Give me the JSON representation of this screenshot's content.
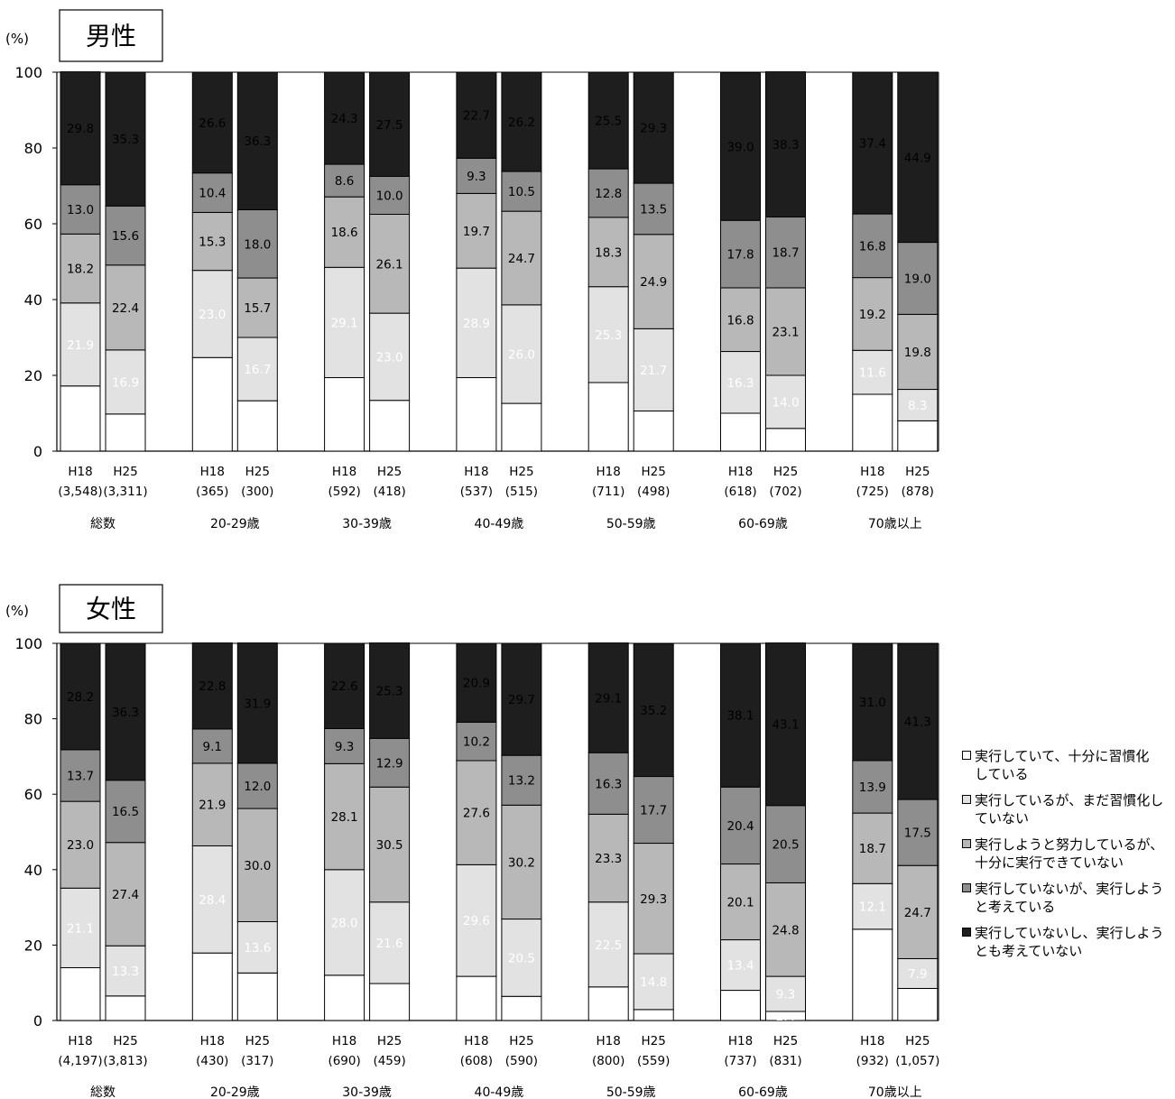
{
  "legend": [
    {
      "label": "実行していて、十分に習慣化している",
      "line1": "実行していて、十分に習慣化",
      "line2": "している",
      "color": "#ffffff"
    },
    {
      "label": "実行しているが、まだ習慣化していない",
      "line1": "実行しているが、まだ習慣化し",
      "line2": "ていない",
      "color": "#e2e2e2"
    },
    {
      "label": "実行しようと努力しているが、十分に実行できていない",
      "line1": "実行しようと努力しているが、",
      "line2": "十分に実行できていない",
      "color": "#b8b8b8"
    },
    {
      "label": "実行していないが、実行しようと考えている",
      "line1": "実行していないが、実行しよう",
      "line2": "と考えている",
      "color": "#8e8e8e"
    },
    {
      "label": "実行していないし、実行しようとも考えていない",
      "line1": "実行していないし、実行しよう",
      "line2": "とも考えていない",
      "color": "#1e1e1e"
    }
  ],
  "chart_data": [
    {
      "type": "bar",
      "stacked": true,
      "title": "男性",
      "ylabel": "(%)",
      "ylim": [
        0,
        100
      ],
      "yticks": [
        0,
        20,
        40,
        60,
        80,
        100
      ],
      "groups": [
        "総数",
        "20-29歳",
        "30-39歳",
        "40-49歳",
        "50-59歳",
        "60-69歳",
        "70歳以上"
      ],
      "bars": [
        {
          "group": 0,
          "year": "H18",
          "n": "(3,548)",
          "values": [
            17.2,
            21.9,
            18.2,
            13.0,
            29.8
          ]
        },
        {
          "group": 0,
          "year": "H25",
          "n": "(3,311)",
          "values": [
            9.8,
            16.9,
            22.4,
            15.6,
            35.3
          ]
        },
        {
          "group": 1,
          "year": "H18",
          "n": "(365)",
          "values": [
            24.7,
            23.0,
            15.3,
            10.4,
            26.6
          ]
        },
        {
          "group": 1,
          "year": "H25",
          "n": "(300)",
          "values": [
            13.3,
            16.7,
            15.7,
            18.0,
            36.3
          ]
        },
        {
          "group": 2,
          "year": "H18",
          "n": "(592)",
          "values": [
            19.4,
            29.1,
            18.6,
            8.6,
            24.3
          ]
        },
        {
          "group": 2,
          "year": "H25",
          "n": "(418)",
          "values": [
            13.4,
            23.0,
            26.1,
            10.0,
            27.5
          ]
        },
        {
          "group": 3,
          "year": "H18",
          "n": "(537)",
          "values": [
            19.4,
            28.9,
            19.7,
            9.3,
            22.7
          ]
        },
        {
          "group": 3,
          "year": "H25",
          "n": "(515)",
          "values": [
            12.6,
            26.0,
            24.7,
            10.5,
            26.2
          ]
        },
        {
          "group": 4,
          "year": "H18",
          "n": "(711)",
          "values": [
            18.1,
            25.3,
            18.3,
            12.8,
            25.5
          ]
        },
        {
          "group": 4,
          "year": "H25",
          "n": "(498)",
          "values": [
            10.6,
            21.7,
            24.9,
            13.5,
            29.3
          ]
        },
        {
          "group": 5,
          "year": "H18",
          "n": "(618)",
          "values": [
            10.0,
            16.3,
            16.8,
            17.8,
            39.0
          ]
        },
        {
          "group": 5,
          "year": "H25",
          "n": "(702)",
          "values": [
            6.0,
            14.0,
            23.1,
            18.7,
            38.3
          ]
        },
        {
          "group": 6,
          "year": "H18",
          "n": "(725)",
          "values": [
            15.0,
            11.6,
            19.2,
            16.8,
            37.4
          ]
        },
        {
          "group": 6,
          "year": "H25",
          "n": "(878)",
          "values": [
            8.0,
            8.3,
            19.8,
            19.0,
            44.9
          ]
        }
      ]
    },
    {
      "type": "bar",
      "stacked": true,
      "title": "女性",
      "ylabel": "(%)",
      "ylim": [
        0,
        100
      ],
      "yticks": [
        0,
        20,
        40,
        60,
        80,
        100
      ],
      "groups": [
        "総数",
        "20-29歳",
        "30-39歳",
        "40-49歳",
        "50-59歳",
        "60-69歳",
        "70歳以上"
      ],
      "bars": [
        {
          "group": 0,
          "year": "H18",
          "n": "(4,197)",
          "values": [
            14.0,
            21.1,
            23.0,
            13.7,
            28.2
          ]
        },
        {
          "group": 0,
          "year": "H25",
          "n": "(3,813)",
          "values": [
            6.5,
            13.3,
            27.4,
            16.5,
            36.3
          ]
        },
        {
          "group": 1,
          "year": "H18",
          "n": "(430)",
          "values": [
            17.9,
            28.4,
            21.9,
            9.1,
            22.8
          ]
        },
        {
          "group": 1,
          "year": "H25",
          "n": "(317)",
          "values": [
            12.6,
            13.6,
            30.0,
            12.0,
            31.9
          ]
        },
        {
          "group": 2,
          "year": "H18",
          "n": "(690)",
          "values": [
            12.0,
            28.0,
            28.1,
            9.3,
            22.6
          ]
        },
        {
          "group": 2,
          "year": "H25",
          "n": "(459)",
          "values": [
            9.8,
            21.6,
            30.5,
            12.9,
            25.3
          ]
        },
        {
          "group": 3,
          "year": "H18",
          "n": "(608)",
          "values": [
            11.7,
            29.6,
            27.6,
            10.2,
            20.9
          ]
        },
        {
          "group": 3,
          "year": "H25",
          "n": "(590)",
          "values": [
            6.4,
            20.5,
            30.2,
            13.2,
            29.7
          ]
        },
        {
          "group": 4,
          "year": "H18",
          "n": "(800)",
          "values": [
            8.9,
            22.5,
            23.3,
            16.3,
            29.1
          ]
        },
        {
          "group": 4,
          "year": "H25",
          "n": "(559)",
          "values": [
            2.9,
            14.8,
            29.3,
            17.7,
            35.2
          ]
        },
        {
          "group": 5,
          "year": "H18",
          "n": "(737)",
          "values": [
            8.0,
            13.4,
            20.1,
            20.4,
            38.1
          ]
        },
        {
          "group": 5,
          "year": "H25",
          "n": "(831)",
          "values": [
            2.4,
            9.3,
            24.8,
            20.5,
            43.1
          ]
        },
        {
          "group": 6,
          "year": "H18",
          "n": "(932)",
          "values": [
            24.2,
            12.1,
            18.7,
            13.9,
            31.0
          ]
        },
        {
          "group": 6,
          "year": "H25",
          "n": "(1,057)",
          "values": [
            8.5,
            7.9,
            24.7,
            17.5,
            41.3
          ]
        }
      ]
    }
  ]
}
